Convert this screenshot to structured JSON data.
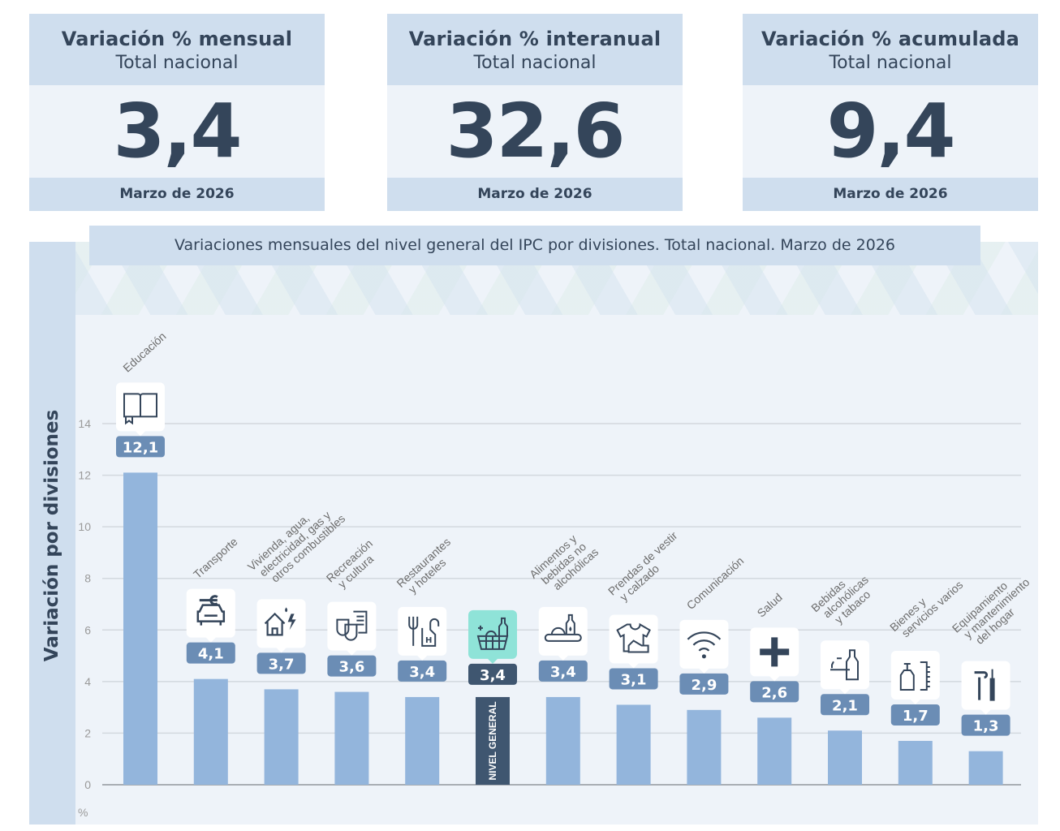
{
  "kpis": [
    {
      "title": "Variación % mensual",
      "subtitle": "Total nacional",
      "value": "3,4",
      "period": "Marzo de 2026"
    },
    {
      "title": "Variación % interanual",
      "subtitle": "Total nacional",
      "value": "32,6",
      "period": "Marzo de 2026"
    },
    {
      "title": "Variación % acumulada",
      "subtitle": "Total nacional",
      "value": "9,4",
      "period": "Marzo de 2026"
    }
  ],
  "colors": {
    "bar": "#93b5dc",
    "highlight_bar": "#3f5670",
    "value_badge": "#6b8db5",
    "highlight_badge": "#3f5670",
    "highlight_icon_bg": "#8fe3d8",
    "icon_stroke": "#34455a",
    "panel_bg": "#eef3f9",
    "header_bg": "#cfdeee"
  },
  "chart_data": {
    "type": "bar",
    "title": "Variaciones mensuales del nivel general del IPC por divisiones. Total nacional. Marzo de 2026",
    "xlabel": "",
    "ylabel": "Variación por divisiones",
    "yunit": "%",
    "ylim": [
      0,
      14
    ],
    "yticks": [
      0,
      2,
      4,
      6,
      8,
      10,
      12,
      14
    ],
    "grid": true,
    "categories": [
      "Educación",
      "Transporte",
      "Vivienda, agua, electricidad, gas y otros combustibles",
      "Recreación y cultura",
      "Restaurantes y hoteles",
      "Nivel general",
      "Alimentos y bebidas no alcohólicas",
      "Prendas de vestir y calzado",
      "Comunicación",
      "Salud",
      "Bebidas alcohólicas y tabaco",
      "Bienes y servicios varios",
      "Equipamiento y mantenimiento del hogar"
    ],
    "category_label_lines": [
      [
        "Educación"
      ],
      [
        "Transporte"
      ],
      [
        "Vivienda, agua,",
        "electricidad, gas y",
        "otros combustibles"
      ],
      [
        "Recreación",
        "y cultura"
      ],
      [
        "Restaurantes",
        "y hoteles"
      ],
      [],
      [
        "Alimentos y",
        "bebidas no",
        "alcohólicas"
      ],
      [
        "Prendas de vestir",
        "y calzado"
      ],
      [
        "Comunicación"
      ],
      [
        "Salud"
      ],
      [
        "Bebidas",
        "alcohólicas",
        "y tabaco"
      ],
      [
        "Bienes y",
        "servicios varios"
      ],
      [
        "Equipamiento",
        "y mantenimiento",
        "del hogar"
      ]
    ],
    "values": [
      12.1,
      4.1,
      3.7,
      3.6,
      3.4,
      3.4,
      3.4,
      3.1,
      2.9,
      2.6,
      2.1,
      1.7,
      1.3
    ],
    "value_labels": [
      "12,1",
      "4,1",
      "3,7",
      "3,6",
      "3,4",
      "3,4",
      "3,4",
      "3,1",
      "2,9",
      "2,6",
      "2,1",
      "1,7",
      "1,3"
    ],
    "icons": [
      "book-icon",
      "car-wrench-icon",
      "house-utilities-icon",
      "theater-masks-icon",
      "fork-hotel-icon",
      "basket-icon",
      "food-bottle-icon",
      "shirt-shoe-icon",
      "wifi-icon",
      "health-cross-icon",
      "bottle-icon",
      "soap-comb-icon",
      "tools-icon"
    ],
    "highlight_index": 5,
    "highlight_bar_label": "NIVEL GENERAL"
  }
}
